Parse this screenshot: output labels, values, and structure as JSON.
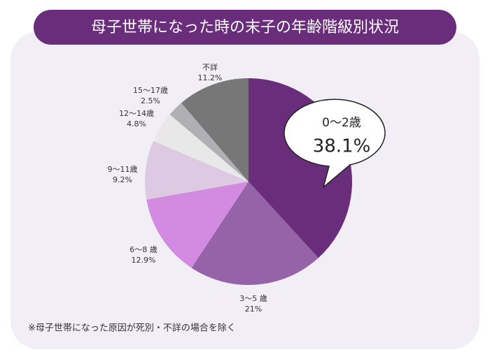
{
  "chart_data": {
    "type": "pie",
    "title": "母子世帯になった時の末子の年齢階級別状況",
    "categories": [
      "0～2歳",
      "3～5 歳",
      "6～8 歳",
      "9～11歳",
      "12～14歳",
      "15～17歳",
      "不詳"
    ],
    "values": [
      38.1,
      21,
      12.9,
      9.2,
      4.8,
      2.5,
      11.2
    ],
    "value_labels": [
      "38.1%",
      "21%",
      "12.9%",
      "9.2%",
      "4.8%",
      "2.5%",
      "11.2%"
    ],
    "colors": [
      "#6a2d7b",
      "#9563a8",
      "#d28be0",
      "#ddc9e1",
      "#e8e8e8",
      "#b0b0b4",
      "#777777"
    ],
    "footnote": "※母子世帯になった原因が死別・不詳の場合を除く"
  }
}
